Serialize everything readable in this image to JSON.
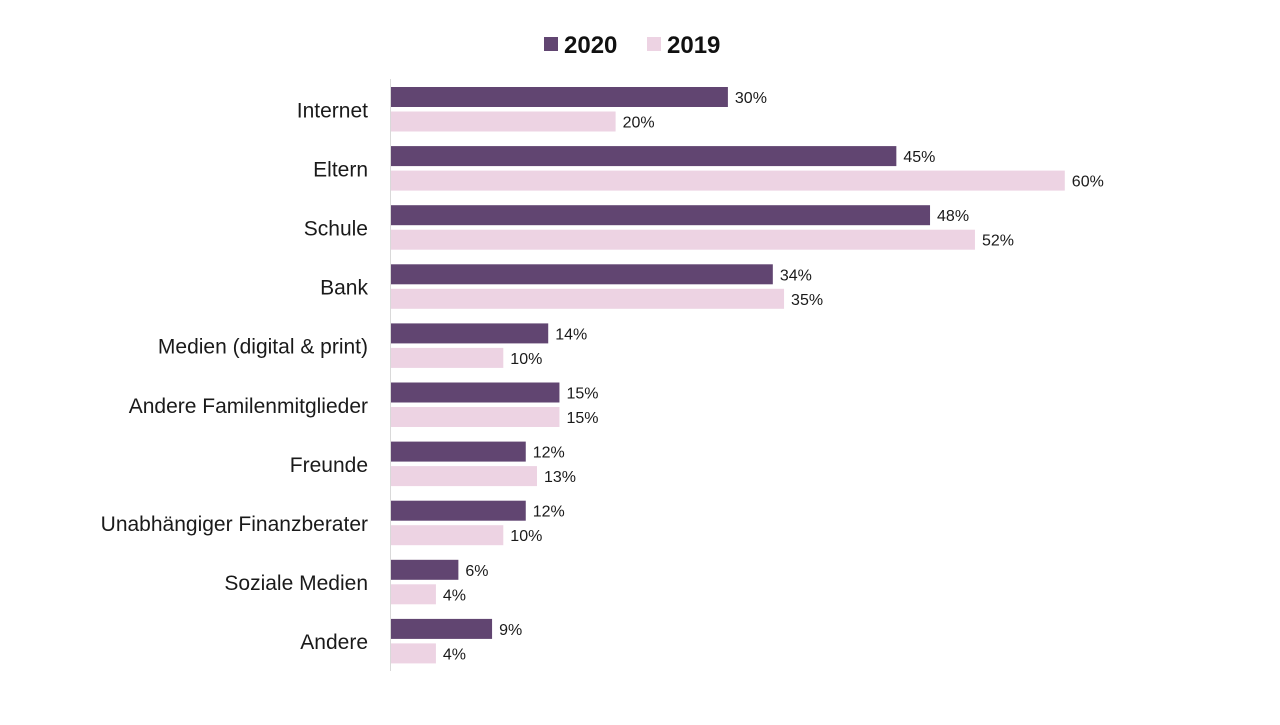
{
  "chart_data": {
    "type": "bar",
    "orientation": "horizontal",
    "categories": [
      "Internet",
      "Eltern",
      "Schule",
      "Bank",
      "Medien (digital & print)",
      "Andere Familenmitglieder",
      "Freunde",
      "Unabhängiger Finanzberater",
      "Soziale Medien",
      "Andere"
    ],
    "series": [
      {
        "name": "2020",
        "color": "#614571",
        "values": [
          30,
          45,
          48,
          34,
          14,
          15,
          12,
          12,
          6,
          9
        ],
        "labels": [
          "30%",
          "45%",
          "48%",
          "34%",
          "14%",
          "15%",
          "12%",
          "12%",
          "6%",
          "9%"
        ]
      },
      {
        "name": "2019",
        "color": "#edd3e3",
        "values": [
          20,
          60,
          52,
          35,
          10,
          15,
          13,
          10,
          4,
          4
        ],
        "labels": [
          "20%",
          "60%",
          "52%",
          "35%",
          "10%",
          "15%",
          "13%",
          "10%",
          "4%",
          "4%"
        ]
      }
    ],
    "value_unit": "%",
    "xlim": [
      0,
      60
    ],
    "grid": false,
    "legend_position": "top-center",
    "title": "",
    "xlabel": "",
    "ylabel": ""
  }
}
